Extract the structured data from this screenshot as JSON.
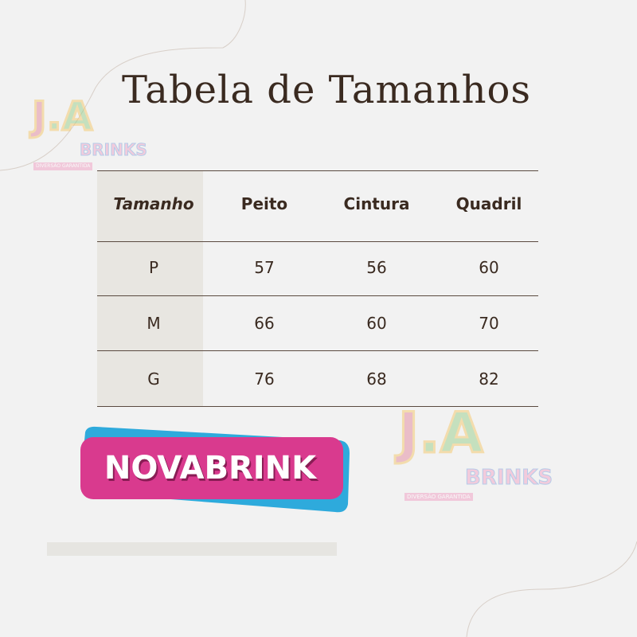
{
  "title": "Tabela de Tamanhos",
  "table": {
    "headers": [
      "Tamanho",
      "Peito",
      "Cintura",
      "Quadril"
    ],
    "rows": [
      [
        "P",
        "57",
        "56",
        "60"
      ],
      [
        "M",
        "66",
        "60",
        "70"
      ],
      [
        "G",
        "76",
        "68",
        "82"
      ]
    ]
  },
  "logos": {
    "ja_brinks": {
      "letters": "J.A.",
      "word": "BRINKS",
      "tagline": "DIVERSÃO GARANTIDA"
    },
    "novabrink": {
      "text": "NOVABRINK",
      "colors": {
        "pink": "#d93a8e",
        "blue": "#2eaadc"
      }
    }
  },
  "colors": {
    "background": "#f2f2f2",
    "text": "#3a2a20",
    "shade": "#e8e6e1"
  }
}
